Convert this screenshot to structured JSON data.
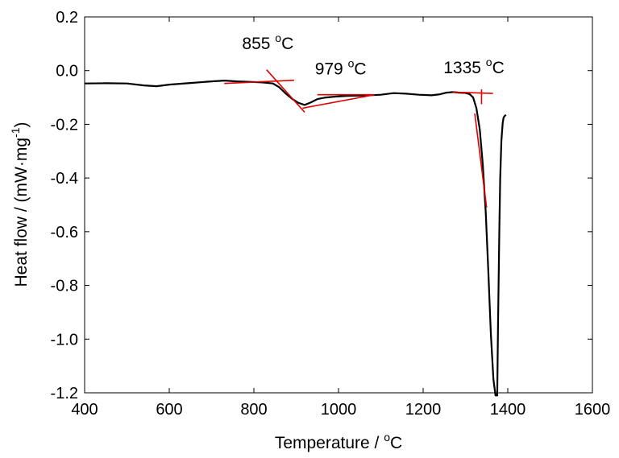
{
  "chart_data": {
    "type": "line",
    "title": "",
    "xlabel": "Temperature / °C",
    "xlabel_parts": {
      "main": "Temperature / ",
      "sup": "o",
      "unit": "C"
    },
    "ylabel": "Heat flow / (mW·mg⁻¹)",
    "ylabel_parts": {
      "main": "Heat flow / (mW·mg",
      "sup": "-1",
      "close": ")"
    },
    "xlim": [
      400,
      1600
    ],
    "ylim": [
      -1.2,
      0.2
    ],
    "x_ticks": [
      400,
      600,
      800,
      1000,
      1200,
      1400,
      1600
    ],
    "x_tick_labels": [
      "400",
      "600",
      "800",
      "1000",
      "1200",
      "1400",
      "1600"
    ],
    "y_ticks": [
      0.2,
      0.0,
      -0.2,
      -0.4,
      -0.6,
      -0.8,
      -1.0,
      -1.2
    ],
    "y_tick_labels": [
      "0.2",
      "0.0",
      "-0.2",
      "-0.4",
      "-0.6",
      "-0.8",
      "-1.0",
      "-1.2"
    ],
    "grid": false,
    "legend": "none",
    "series": [
      {
        "color": "#000000",
        "x": [
          400,
          450,
          500,
          540,
          570,
          600,
          650,
          700,
          730,
          760,
          790,
          820,
          845,
          860,
          875,
          890,
          905,
          920,
          935,
          950,
          970,
          990,
          1020,
          1060,
          1100,
          1130,
          1160,
          1190,
          1220,
          1240,
          1255,
          1270,
          1285,
          1300,
          1310,
          1318,
          1326,
          1334,
          1341,
          1348,
          1354,
          1360,
          1366,
          1371,
          1375,
          1377,
          1380,
          1382,
          1385,
          1388,
          1390,
          1393,
          1396
        ],
        "y": [
          -0.048,
          -0.047,
          -0.048,
          -0.055,
          -0.058,
          -0.052,
          -0.046,
          -0.04,
          -0.037,
          -0.04,
          -0.042,
          -0.044,
          -0.048,
          -0.062,
          -0.085,
          -0.105,
          -0.12,
          -0.128,
          -0.118,
          -0.106,
          -0.1,
          -0.097,
          -0.094,
          -0.093,
          -0.09,
          -0.084,
          -0.086,
          -0.09,
          -0.092,
          -0.088,
          -0.082,
          -0.08,
          -0.082,
          -0.083,
          -0.088,
          -0.1,
          -0.14,
          -0.22,
          -0.35,
          -0.53,
          -0.75,
          -0.98,
          -1.15,
          -1.21,
          -1.21,
          -0.95,
          -0.6,
          -0.4,
          -0.26,
          -0.195,
          -0.175,
          -0.168,
          -0.165
        ]
      }
    ],
    "tangent_color": "#e00000",
    "tangents": [
      {
        "x": [
          730,
          895
        ],
        "y": [
          -0.048,
          -0.036
        ]
      },
      {
        "x": [
          830,
          920
        ],
        "y": [
          0.003,
          -0.155
        ]
      },
      {
        "x": [
          915,
          1085
        ],
        "y": [
          -0.14,
          -0.09
        ]
      },
      {
        "x": [
          950,
          1085
        ],
        "y": [
          -0.09,
          -0.09
        ]
      },
      {
        "x": [
          1270,
          1365
        ],
        "y": [
          -0.08,
          -0.085
        ]
      },
      {
        "x": [
          1322,
          1350
        ],
        "y": [
          -0.16,
          -0.51
        ]
      },
      {
        "x": [
          1338,
          1338
        ],
        "y": [
          -0.07,
          -0.125
        ]
      }
    ],
    "annotations": [
      {
        "value": "855",
        "sup": "o",
        "unit": "C",
        "x": 833,
        "y": 0.08
      },
      {
        "value": "979",
        "sup": "o",
        "unit": "C",
        "x": 1005,
        "y": -0.015
      },
      {
        "value": "1335",
        "sup": "o",
        "unit": "C",
        "x": 1320,
        "y": -0.01
      }
    ]
  }
}
